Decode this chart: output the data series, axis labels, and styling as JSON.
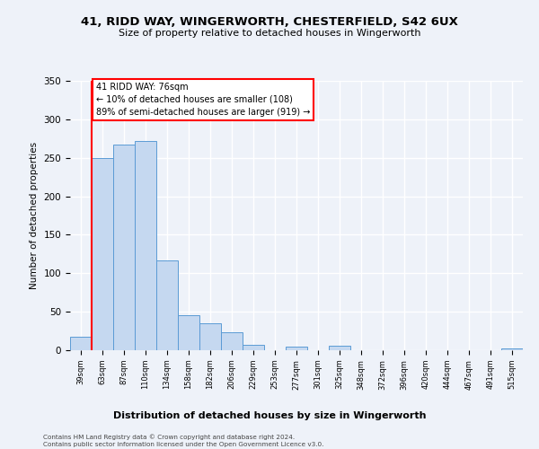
{
  "title1": "41, RIDD WAY, WINGERWORTH, CHESTERFIELD, S42 6UX",
  "title2": "Size of property relative to detached houses in Wingerworth",
  "xlabel": "Distribution of detached houses by size in Wingerworth",
  "ylabel": "Number of detached properties",
  "bin_labels": [
    "39sqm",
    "63sqm",
    "87sqm",
    "110sqm",
    "134sqm",
    "158sqm",
    "182sqm",
    "206sqm",
    "229sqm",
    "253sqm",
    "277sqm",
    "301sqm",
    "325sqm",
    "348sqm",
    "372sqm",
    "396sqm",
    "420sqm",
    "444sqm",
    "467sqm",
    "491sqm",
    "515sqm"
  ],
  "bar_heights": [
    17,
    250,
    267,
    272,
    117,
    45,
    35,
    23,
    7,
    0,
    5,
    0,
    6,
    0,
    0,
    0,
    0,
    0,
    0,
    0,
    2
  ],
  "bar_color": "#c5d8f0",
  "bar_edge_color": "#5b9bd5",
  "vline_x": 1,
  "vline_color": "red",
  "annotation_title": "41 RIDD WAY: 76sqm",
  "annotation_line1": "← 10% of detached houses are smaller (108)",
  "annotation_line2": "89% of semi-detached houses are larger (919) →",
  "annotation_box_color": "white",
  "annotation_box_edge": "red",
  "ylim": [
    0,
    350
  ],
  "yticks": [
    0,
    50,
    100,
    150,
    200,
    250,
    300,
    350
  ],
  "footer1": "Contains HM Land Registry data © Crown copyright and database right 2024.",
  "footer2": "Contains public sector information licensed under the Open Government Licence v3.0.",
  "bg_color": "#eef2f9"
}
